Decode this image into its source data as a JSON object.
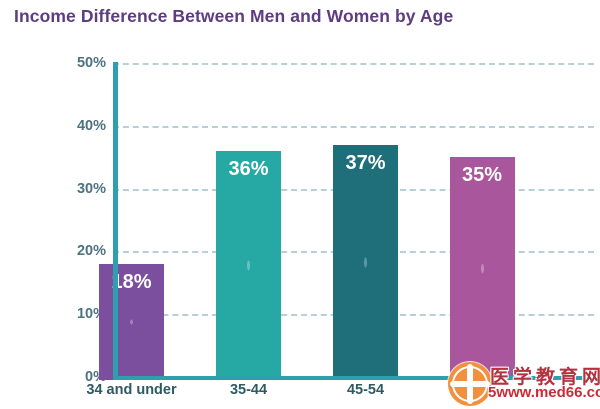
{
  "chart_data": {
    "type": "bar",
    "title": "Income Difference Between Men and Women by Age",
    "categories": [
      "34 and under",
      "35-44",
      "45-54",
      ""
    ],
    "values": [
      18,
      36,
      37,
      35
    ],
    "bar_labels": [
      "18%",
      "36%",
      "37%",
      "35%"
    ],
    "bar_colors": [
      "#7b4f9e",
      "#26a9a4",
      "#1f6f7b",
      "#a9569d"
    ],
    "xlabel": "",
    "ylabel": "",
    "ylim": [
      0,
      50
    ],
    "yticks": [
      "0%",
      "10%",
      "20%",
      "30%",
      "40%",
      "50%"
    ],
    "grid": "horizontal-dashed",
    "legend": "none"
  },
  "colors": {
    "title": "#5e3c80",
    "axis": "#2e9fae",
    "gridline": "#b7cfd6",
    "y_tick_label": "#4d7280",
    "x_tick_label": "#2f5a63",
    "bar_value_label": "#ffffff",
    "watermark_text": "#b2323f",
    "watermark_url": "#cc2a35",
    "watermark_icon": "#f2913d"
  },
  "watermark": {
    "site_name": "医学教育网",
    "site_url": "5www.med66.com"
  }
}
